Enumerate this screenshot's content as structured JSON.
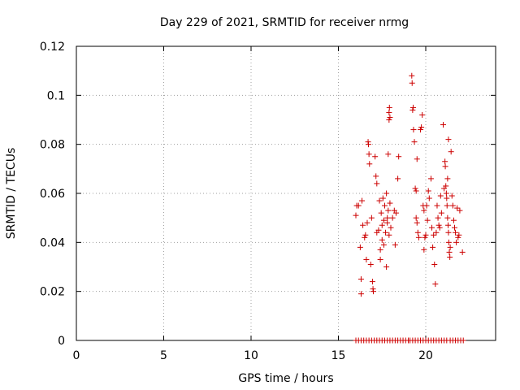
{
  "chart_data": {
    "type": "scatter",
    "title": "Day 229 of 2021, SRMTID for receiver nrmg",
    "xlabel": "GPS time / hours",
    "ylabel": "SRMTID / TECUs",
    "xlim": [
      0,
      24
    ],
    "ylim": [
      0,
      0.12
    ],
    "grid": true,
    "xticks": [
      0,
      5,
      10,
      15,
      20
    ],
    "xtick_labels": [
      "0",
      "5",
      "10",
      "15",
      "20"
    ],
    "yticks": [
      0,
      0.02,
      0.04,
      0.06,
      0.08,
      0.1,
      0.12
    ],
    "ytick_labels": [
      "0",
      "0.02",
      "0.04",
      "0.06",
      "0.08",
      "0.1",
      "0.12"
    ],
    "marker": "+",
    "color": "#cc0000",
    "series": [
      {
        "name": "SRMTID",
        "points": [
          [
            16.0,
            0.051
          ],
          [
            16.05,
            0.055
          ],
          [
            16.15,
            0.055
          ],
          [
            16.25,
            0.038
          ],
          [
            16.3,
            0.025
          ],
          [
            16.3,
            0.019
          ],
          [
            16.35,
            0.057
          ],
          [
            16.4,
            0.047
          ],
          [
            16.5,
            0.042
          ],
          [
            16.55,
            0.043
          ],
          [
            16.6,
            0.033
          ],
          [
            16.65,
            0.048
          ],
          [
            16.7,
            0.081
          ],
          [
            16.72,
            0.08
          ],
          [
            16.75,
            0.076
          ],
          [
            16.78,
            0.072
          ],
          [
            16.85,
            0.031
          ],
          [
            16.9,
            0.05
          ],
          [
            16.95,
            0.024
          ],
          [
            16.98,
            0.021
          ],
          [
            17.0,
            0.02
          ],
          [
            17.1,
            0.075
          ],
          [
            17.15,
            0.067
          ],
          [
            17.2,
            0.064
          ],
          [
            17.2,
            0.044
          ],
          [
            17.3,
            0.045
          ],
          [
            17.35,
            0.057
          ],
          [
            17.4,
            0.033
          ],
          [
            17.4,
            0.037
          ],
          [
            17.45,
            0.052
          ],
          [
            17.5,
            0.047
          ],
          [
            17.5,
            0.041
          ],
          [
            17.55,
            0.058
          ],
          [
            17.6,
            0.049
          ],
          [
            17.6,
            0.039
          ],
          [
            17.65,
            0.055
          ],
          [
            17.7,
            0.044
          ],
          [
            17.75,
            0.03
          ],
          [
            17.75,
            0.06
          ],
          [
            17.8,
            0.05
          ],
          [
            17.8,
            0.048
          ],
          [
            17.85,
            0.076
          ],
          [
            17.85,
            0.053
          ],
          [
            17.9,
            0.093
          ],
          [
            17.9,
            0.09
          ],
          [
            17.92,
            0.095
          ],
          [
            17.95,
            0.091
          ],
          [
            17.9,
            0.043
          ],
          [
            17.95,
            0.056
          ],
          [
            18.0,
            0.046
          ],
          [
            18.1,
            0.05
          ],
          [
            18.2,
            0.053
          ],
          [
            18.25,
            0.039
          ],
          [
            18.3,
            0.052
          ],
          [
            18.4,
            0.066
          ],
          [
            18.45,
            0.075
          ],
          [
            19.2,
            0.108
          ],
          [
            19.22,
            0.105
          ],
          [
            19.25,
            0.094
          ],
          [
            19.28,
            0.095
          ],
          [
            19.3,
            0.086
          ],
          [
            19.35,
            0.081
          ],
          [
            19.4,
            0.062
          ],
          [
            19.45,
            0.061
          ],
          [
            19.5,
            0.074
          ],
          [
            19.45,
            0.05
          ],
          [
            19.5,
            0.048
          ],
          [
            19.55,
            0.044
          ],
          [
            19.6,
            0.042
          ],
          [
            19.7,
            0.086
          ],
          [
            19.75,
            0.087
          ],
          [
            19.8,
            0.092
          ],
          [
            19.85,
            0.055
          ],
          [
            19.9,
            0.053
          ],
          [
            19.9,
            0.037
          ],
          [
            19.95,
            0.042
          ],
          [
            20.0,
            0.043
          ],
          [
            20.05,
            0.055
          ],
          [
            20.1,
            0.049
          ],
          [
            20.15,
            0.061
          ],
          [
            20.2,
            0.058
          ],
          [
            20.3,
            0.066
          ],
          [
            20.35,
            0.046
          ],
          [
            20.4,
            0.038
          ],
          [
            20.45,
            0.043
          ],
          [
            20.5,
            0.031
          ],
          [
            20.55,
            0.023
          ],
          [
            20.6,
            0.044
          ],
          [
            20.65,
            0.055
          ],
          [
            20.7,
            0.05
          ],
          [
            20.75,
            0.047
          ],
          [
            20.8,
            0.046
          ],
          [
            20.85,
            0.059
          ],
          [
            20.9,
            0.052
          ],
          [
            21.0,
            0.088
          ],
          [
            21.05,
            0.062
          ],
          [
            21.1,
            0.073
          ],
          [
            21.12,
            0.071
          ],
          [
            21.15,
            0.063
          ],
          [
            21.18,
            0.06
          ],
          [
            21.2,
            0.058
          ],
          [
            21.22,
            0.055
          ],
          [
            21.25,
            0.066
          ],
          [
            21.25,
            0.05
          ],
          [
            21.28,
            0.047
          ],
          [
            21.3,
            0.082
          ],
          [
            21.3,
            0.044
          ],
          [
            21.32,
            0.04
          ],
          [
            21.35,
            0.036
          ],
          [
            21.38,
            0.034
          ],
          [
            21.4,
            0.038
          ],
          [
            21.45,
            0.077
          ],
          [
            21.5,
            0.059
          ],
          [
            21.55,
            0.055
          ],
          [
            21.6,
            0.049
          ],
          [
            21.65,
            0.046
          ],
          [
            21.7,
            0.044
          ],
          [
            21.75,
            0.04
          ],
          [
            21.8,
            0.054
          ],
          [
            21.85,
            0.042
          ],
          [
            21.9,
            0.043
          ],
          [
            21.95,
            0.053
          ],
          [
            22.1,
            0.036
          ]
        ],
        "zero_points": [
          16.0,
          16.15,
          16.3,
          16.45,
          16.6,
          16.75,
          16.9,
          17.05,
          17.2,
          17.35,
          17.5,
          17.65,
          17.8,
          17.95,
          18.1,
          18.25,
          18.4,
          18.55,
          18.7,
          18.85,
          19.0,
          19.1,
          19.25,
          19.4,
          19.55,
          19.7,
          19.85,
          20.0,
          20.15,
          20.3,
          20.45,
          20.6,
          20.75,
          20.9,
          21.05,
          21.2,
          21.4,
          21.55,
          21.7,
          21.85,
          22.0,
          22.15
        ]
      }
    ]
  }
}
